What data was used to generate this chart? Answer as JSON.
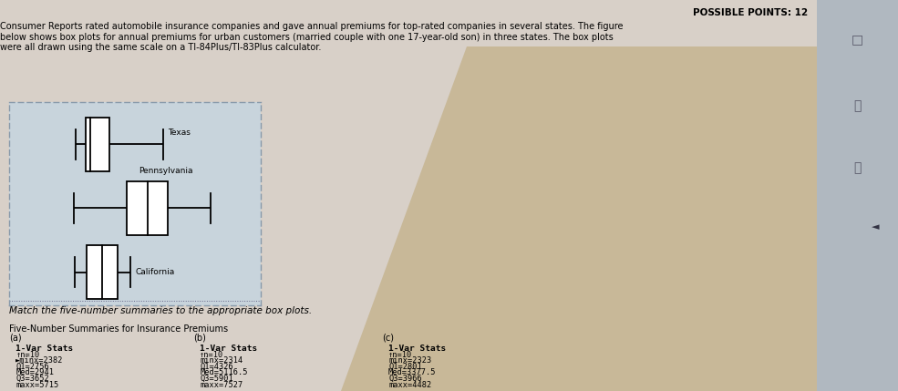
{
  "title_top_right": "POSSIBLE POINTS: 12",
  "description": "Consumer Reports rated automobile insurance companies and gave annual premiums for top-rated companies in several states. The figure\nbelow shows box plots for annual premiums for urban customers (married couple with one 17-year-old son) in three states. The box plots\nwere all drawn using the same scale on a TI-84Plus/TI-83Plus calculator.",
  "match_text": "Match the five-number summaries to the appropriate box plots.",
  "table_title": "Five-Number Summaries for Insurance Premiums",
  "states_order": [
    "Texas",
    "Pennsylvania",
    "California"
  ],
  "states": {
    "Texas": {
      "min": 2382,
      "Q1": 2756,
      "med": 2941,
      "Q3": 3652,
      "max": 5715
    },
    "Pennsylvania": {
      "min": 2314,
      "Q1": 4326,
      "med": 5116.5,
      "Q3": 5901,
      "max": 7527
    },
    "California": {
      "min": 2323,
      "Q1": 2801,
      "med": 3377.5,
      "Q3": 3966,
      "max": 4482
    }
  },
  "summaries": {
    "a": {
      "label": "(a)",
      "lines": [
        "1-Var Stats",
        "↑n=10",
        "►minx=2382",
        "Q1=2756",
        "Med=2941",
        "Q3=3652",
        "maxx=5715"
      ]
    },
    "b": {
      "label": "(b)",
      "lines": [
        "1-Var Stats",
        "↑n=10",
        "minx=2314",
        "Q1=4326",
        "Med=5116.5",
        "Q3=5901",
        "maxx=7527"
      ]
    },
    "c": {
      "label": "(c)",
      "lines": [
        "1-Var Stats",
        "↑n=10",
        "minx=2323",
        "Q1=2801",
        "Med=3377.5",
        "Q3=3966",
        "maxx=4482"
      ]
    }
  },
  "fig_bg": "#d8d0c8",
  "plot_area_bg": "#c8d4dc",
  "plot_border_color": "#8899aa",
  "summary_bg": "#c0ccd8",
  "summary_border": "#6680a0",
  "tan_bg": "#c8b898",
  "xmin": 0,
  "xmax": 9000
}
